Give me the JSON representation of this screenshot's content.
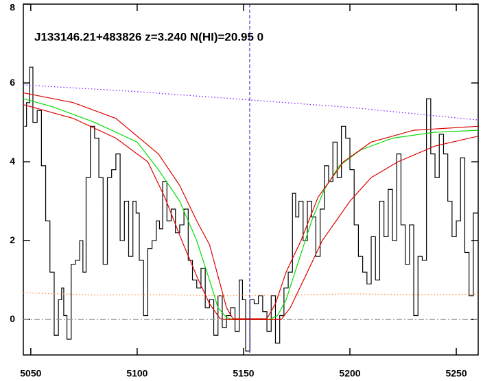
{
  "chart_data": {
    "type": "line",
    "title": "J133146.21+483826 z=3.240 N(HI)=20.95 0",
    "xlim": [
      5046.5,
      5260.3
    ],
    "ylim": [
      -0.9,
      8
    ],
    "xticks": [
      5050,
      5100,
      5150,
      5200,
      5250
    ],
    "yticks": [
      0,
      2,
      4,
      6,
      8
    ],
    "vline": {
      "x": 5152.9,
      "color": "#2020c0",
      "style": "dashed"
    },
    "series": [
      {
        "color": "#000000",
        "style": "step",
        "x": [
          5047,
          5049,
          5050,
          5052,
          5054,
          5056,
          5058,
          5060,
          5062,
          5064,
          5065,
          5066,
          5068,
          5070,
          5072,
          5074,
          5075,
          5077,
          5079,
          5081,
          5083,
          5085,
          5087,
          5089,
          5091,
          5093,
          5095,
          5097,
          5099,
          5100,
          5102,
          5104,
          5106,
          5108,
          5110,
          5111,
          5113,
          5115,
          5117,
          5119,
          5121,
          5123,
          5125,
          5127,
          5129,
          5131,
          5133,
          5135,
          5137,
          5139,
          5141,
          5143,
          5145,
          5147,
          5149,
          5150,
          5152,
          5154,
          5156,
          5158,
          5160,
          5162,
          5164,
          5166,
          5168,
          5170,
          5172,
          5174,
          5175,
          5177,
          5179,
          5181,
          5183,
          5185,
          5187,
          5189,
          5191,
          5193,
          5195,
          5197,
          5199,
          5201,
          5203,
          5205,
          5207,
          5209,
          5211,
          5213,
          5215,
          5217,
          5219,
          5221,
          5223,
          5225,
          5227,
          5229,
          5231,
          5233,
          5235,
          5237,
          5239,
          5241,
          5243,
          5245,
          5247,
          5249,
          5251,
          5253,
          5255,
          5257,
          5259
        ],
        "values": [
          4.9,
          5.5,
          6.4,
          5.0,
          5.3,
          3.9,
          2.5,
          1.2,
          -0.4,
          0.5,
          0.8,
          0.1,
          -0.5,
          1.4,
          1.5,
          2.0,
          1.2,
          3.6,
          4.9,
          4.6,
          3.6,
          1.4,
          3.6,
          3.8,
          4.2,
          2.0,
          3.0,
          1.6,
          3.0,
          2.7,
          1.5,
          0.1,
          1.8,
          2.0,
          2.5,
          2.3,
          3.5,
          2.5,
          2.8,
          2.2,
          2.4,
          2.8,
          1.5,
          1.0,
          0.8,
          1.3,
          0.3,
          0.5,
          -0.4,
          0.6,
          -0.2,
          0.1,
          0.3,
          -0.3,
          1.0,
          0.5,
          -0.8,
          0.5,
          0.4,
          0.6,
          0.2,
          -0.3,
          0.6,
          -0.6,
          0.1,
          0.8,
          1.2,
          3.2,
          2.6,
          3.0,
          2.0,
          3.0,
          2.6,
          1.6,
          2.8,
          3.9,
          3.5,
          4.5,
          3.6,
          4.9,
          4.6,
          3.8,
          2.4,
          1.6,
          1.2,
          0.9,
          2.1,
          1.0,
          3.0,
          2.1,
          3.3,
          2.0,
          4.2,
          2.4,
          1.4,
          2.4,
          0.1,
          1.6,
          1.5,
          5.6,
          4.2,
          3.6,
          4.7,
          4.2,
          3.0,
          2.1,
          2.5,
          4.1,
          1.7,
          0.6,
          2.7
        ]
      },
      {
        "color": "#ff8c40",
        "style": "dotted",
        "x": [
          5046.5,
          5080,
          5110,
          5140,
          5170,
          5200,
          5230,
          5260.3
        ],
        "values": [
          0.68,
          0.62,
          0.63,
          0.6,
          0.62,
          0.65,
          0.63,
          0.64
        ]
      },
      {
        "color": "#999999",
        "style": "dashdot",
        "x": [
          5046.5,
          5260.3
        ],
        "values": [
          0,
          0
        ]
      },
      {
        "color": "#8020ff",
        "style": "dotted",
        "x": [
          5046.5,
          5100,
          5150,
          5200,
          5260.3
        ],
        "values": [
          5.95,
          5.78,
          5.58,
          5.38,
          5.06
        ]
      },
      {
        "color": "#00dd00",
        "style": "solid",
        "x": [
          5046.5,
          5060,
          5080,
          5100,
          5110,
          5120,
          5128,
          5134,
          5138,
          5142,
          5145,
          5162,
          5166,
          5170,
          5176,
          5182,
          5188,
          5195,
          5205,
          5220,
          5240,
          5260.3
        ],
        "values": [
          5.6,
          5.4,
          5.0,
          4.5,
          3.8,
          3.0,
          2.0,
          1.0,
          0.3,
          0.05,
          0,
          0,
          0.1,
          0.5,
          1.5,
          2.5,
          3.3,
          3.9,
          4.3,
          4.6,
          4.75,
          4.8
        ]
      },
      {
        "color": "#dd0000",
        "style": "solid",
        "x": [
          5046.5,
          5070,
          5090,
          5110,
          5120,
          5128,
          5134,
          5138,
          5142,
          5145,
          5161,
          5165,
          5170,
          5177,
          5185,
          5197,
          5210,
          5230,
          5260.3
        ],
        "values": [
          5.75,
          5.5,
          5.1,
          4.2,
          3.4,
          2.5,
          1.9,
          1.1,
          0.3,
          0.02,
          0.02,
          0.4,
          1.2,
          2.0,
          3.1,
          4.0,
          4.5,
          4.8,
          4.9
        ]
      },
      {
        "color": "#dd0000",
        "style": "solid",
        "x": [
          5046.5,
          5070,
          5090,
          5105,
          5113,
          5121,
          5128,
          5134,
          5139,
          5142,
          5167.7,
          5172,
          5180,
          5187,
          5200,
          5210,
          5222.6,
          5240,
          5260.3
        ],
        "values": [
          5.45,
          5.1,
          4.6,
          4.0,
          3.1,
          2.0,
          1.1,
          0.4,
          0.02,
          0,
          0,
          0.3,
          1.2,
          2.0,
          3.0,
          3.6,
          4.0,
          4.4,
          4.65
        ]
      }
    ]
  }
}
